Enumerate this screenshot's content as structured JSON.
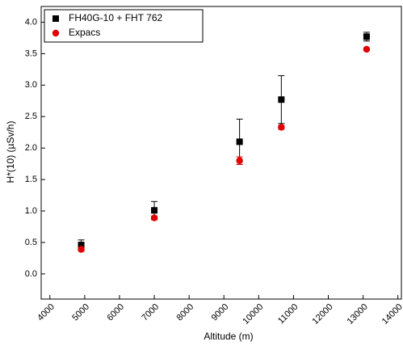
{
  "chart_data": {
    "type": "scatter",
    "x_label": "Altitude (m)",
    "y_label": "H*(10) (µSv/h)",
    "xlim": [
      3750,
      14100
    ],
    "ylim": [
      -0.4,
      4.25
    ],
    "xticks": [
      4000,
      5000,
      6000,
      7000,
      8000,
      9000,
      10000,
      11000,
      12000,
      13000,
      14000
    ],
    "yticks": [
      {
        "value": 0,
        "label": "0.0"
      },
      0.5,
      {
        "value": 1,
        "label": "1.0"
      },
      1.5,
      {
        "value": 2,
        "label": "2.0"
      },
      2.5,
      {
        "value": 3,
        "label": "3.0"
      },
      3.5,
      {
        "value": 4,
        "label": "4.0"
      }
    ],
    "legend": "top-left",
    "series": [
      {
        "name": "FH40G-10 + FHT 762",
        "color": "#000000",
        "marker": "square",
        "x": [
          4900,
          7000,
          9450,
          10650,
          13100
        ],
        "values": [
          0.46,
          1.01,
          2.1,
          2.77,
          3.77
        ],
        "errors": [
          0.08,
          0.14,
          0.36,
          0.38,
          0.07
        ]
      },
      {
        "name": "Expacs",
        "color": "#e00000",
        "marker": "circle",
        "x": [
          4900,
          7000,
          9450,
          10650,
          13100
        ],
        "values": [
          0.39,
          0.89,
          1.8,
          2.33,
          3.57
        ],
        "errors": [
          0.03,
          0.03,
          0.06,
          0.03,
          0.02
        ]
      }
    ]
  }
}
